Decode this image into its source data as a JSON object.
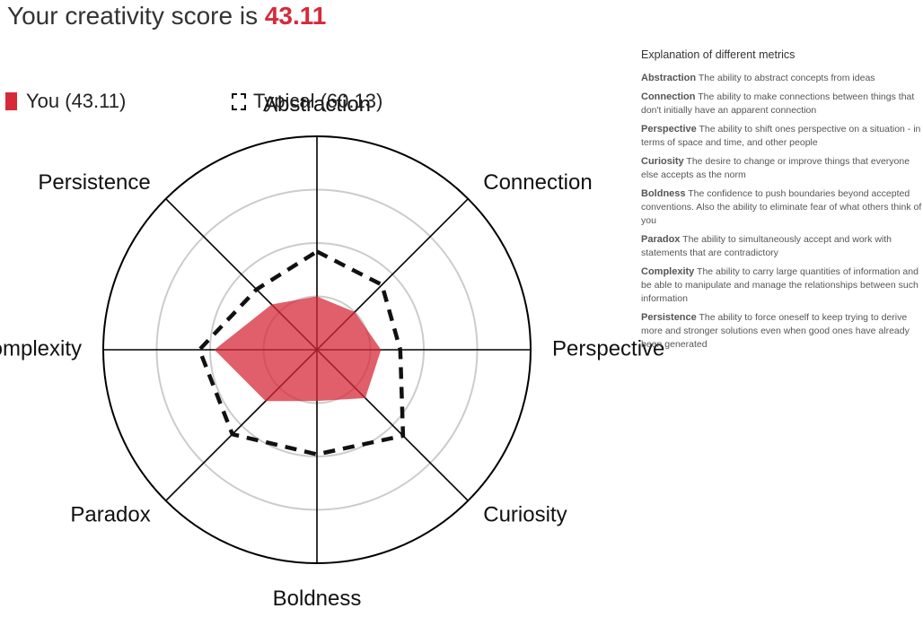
{
  "header": {
    "title_prefix": "Your creativity score is ",
    "score": "43.11"
  },
  "legend": {
    "you_label": "You (43.11)",
    "typical_label": "Typical (60.13)"
  },
  "explanation": {
    "heading": "Explanation of different metrics",
    "metrics": [
      {
        "name": "Abstraction",
        "desc": "The ability to abstract concepts from ideas"
      },
      {
        "name": "Connection",
        "desc": "The ability to make connections between things that don't initially have an apparent connection"
      },
      {
        "name": "Perspective",
        "desc": "The ability to shift ones perspective on a situation - in terms of space and time, and other people"
      },
      {
        "name": "Curiosity",
        "desc": "The desire to change or improve things that everyone else accepts as the norm"
      },
      {
        "name": "Boldness",
        "desc": "The confidence to push boundaries beyond accepted conventions. Also the ability to eliminate fear of what others think of you"
      },
      {
        "name": "Paradox",
        "desc": "The ability to simultaneously accept and work with statements that are contradictory"
      },
      {
        "name": "Complexity",
        "desc": "The ability to carry large quantities of information and be able to manipulate and manage the relationships between such information"
      },
      {
        "name": "Persistence",
        "desc": "The ability to force oneself to keep trying to derive more and stronger solutions even when good ones have already been generated"
      }
    ]
  },
  "chart_data": {
    "type": "radar",
    "axes": [
      "Abstraction",
      "Connection",
      "Perspective",
      "Curiosity",
      "Boldness",
      "Paradox",
      "Complexity",
      "Persistence"
    ],
    "series": [
      {
        "name": "You (43.11)",
        "values": [
          25,
          25,
          30,
          32,
          24,
          34,
          48,
          30
        ],
        "color": "#d62a3a"
      },
      {
        "name": "Typical (60.13)",
        "values": [
          46,
          43,
          39,
          57,
          49,
          56,
          55,
          40
        ],
        "color": "#111111"
      }
    ],
    "range": [
      0,
      100
    ],
    "grid_rings": 4
  }
}
